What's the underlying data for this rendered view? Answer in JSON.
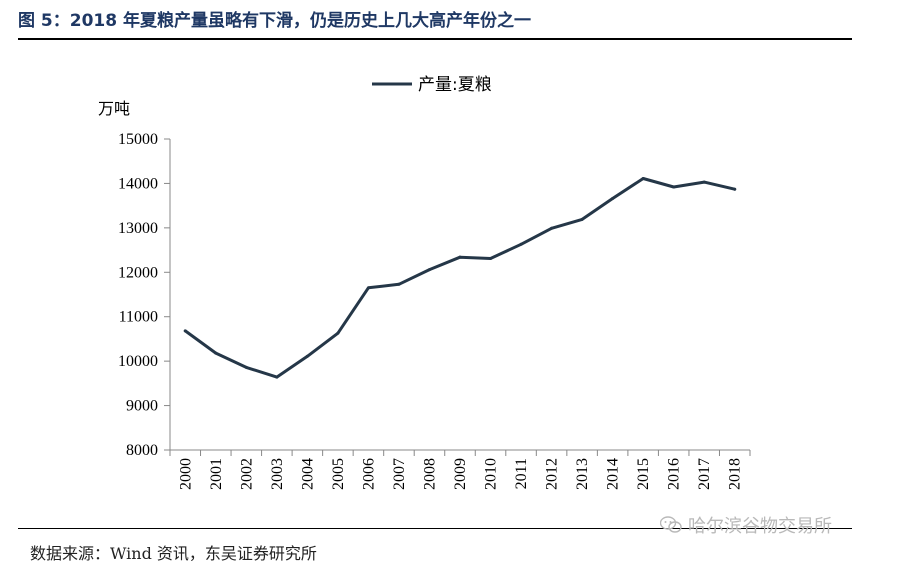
{
  "header": {
    "figure_title": "图 5：2018 年夏粮产量虽略有下滑，仍是历史上几大高产年份之一"
  },
  "footer": {
    "source": "数据来源：Wind 资讯，东吴证券研究所",
    "watermark": "哈尔滨谷物交易所",
    "watermark_icon": "wechat-icon"
  },
  "colors": {
    "series": "#253748",
    "title": "#1f3864"
  },
  "chart_data": {
    "type": "line",
    "title": "",
    "xlabel": "",
    "ylabel": "万吨",
    "ylim": [
      8000,
      15000
    ],
    "yticks": [
      8000,
      9000,
      10000,
      11000,
      12000,
      13000,
      14000,
      15000
    ],
    "x": [
      "2000",
      "2001",
      "2002",
      "2003",
      "2004",
      "2005",
      "2006",
      "2007",
      "2008",
      "2009",
      "2010",
      "2011",
      "2012",
      "2013",
      "2014",
      "2015",
      "2016",
      "2017",
      "2018"
    ],
    "series": [
      {
        "name": "产量:夏粮",
        "values": [
          10680,
          10180,
          9860,
          9640,
          10110,
          10630,
          11650,
          11730,
          12060,
          12340,
          12310,
          12630,
          12990,
          13190,
          13660,
          14110,
          13920,
          14030,
          13870
        ]
      }
    ],
    "legend": "top-center",
    "grid": false
  }
}
